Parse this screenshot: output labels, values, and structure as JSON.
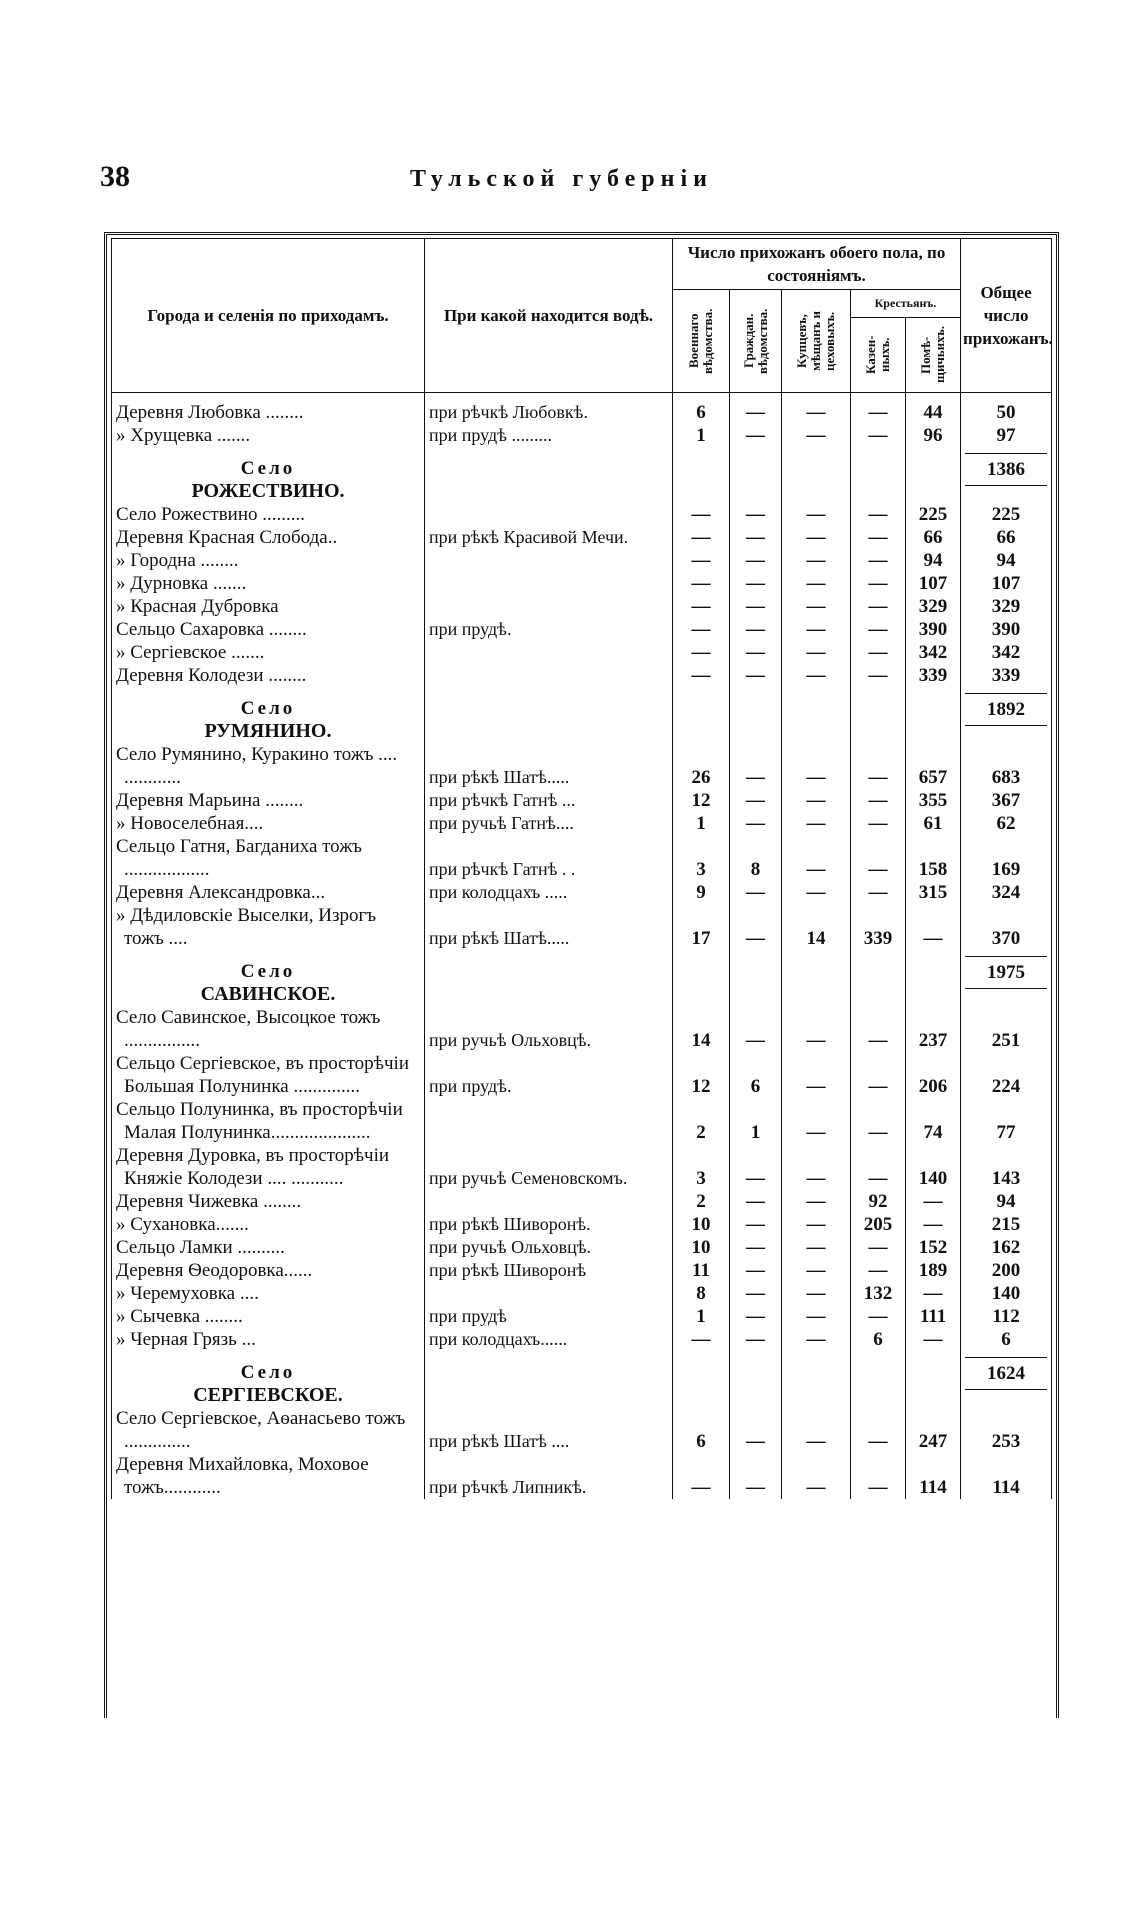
{
  "header": {
    "page_number": "38",
    "running_title": "Тульской губерніи"
  },
  "table": {
    "columns": {
      "name": "Города и селенія по приходамъ.",
      "water": "При какой находится водѣ.",
      "group": "Число прихожанъ обоего пола, по состояніямъ.",
      "military": "Военнаго вѣдомства.",
      "civil": "Граждан. вѣдомства.",
      "merchants": "Купцевъ, мѣщанъ и цеховыхъ.",
      "peasants": "Крестьянъ.",
      "state": "Казен-ныхъ.",
      "private": "Помѣ-щичьихъ.",
      "total": "Общее число прихожанъ."
    },
    "rows": [
      {
        "name": "Деревня Любовка ........",
        "water": "при рѣчкѣ Любовкѣ.",
        "cells": [
          "6",
          "—",
          "—",
          "—",
          "44",
          "50"
        ]
      },
      {
        "name": "» Хрущевка .......",
        "water": "при прудѣ .........",
        "cells": [
          "1",
          "—",
          "—",
          "—",
          "96",
          "97"
        ]
      },
      {
        "label": "Село",
        "title": "РОЖЕСТВИНО.",
        "total": "1386"
      },
      {
        "name": "Село Рожествино .........",
        "water": "",
        "cells": [
          "—",
          "—",
          "—",
          "—",
          "225",
          "225"
        ]
      },
      {
        "name": "Деревня Красная Слобода..",
        "water": "при рѣкѣ Красивой Мечи.",
        "cells": [
          "—",
          "—",
          "—",
          "—",
          "66",
          "66"
        ]
      },
      {
        "name": "» Городна ........",
        "water": "",
        "cells": [
          "—",
          "—",
          "—",
          "—",
          "94",
          "94"
        ]
      },
      {
        "name": "» Дурновка .......",
        "water": "",
        "cells": [
          "—",
          "—",
          "—",
          "—",
          "107",
          "107"
        ]
      },
      {
        "name": "» Красная Дубровка",
        "water": "",
        "cells": [
          "—",
          "—",
          "—",
          "—",
          "329",
          "329"
        ]
      },
      {
        "name": "Сельцо Сахаровка ........",
        "water": "при прудѣ.",
        "cells": [
          "—",
          "—",
          "—",
          "—",
          "390",
          "390"
        ]
      },
      {
        "name": "» Сергіевское .......",
        "water": "",
        "cells": [
          "—",
          "—",
          "—",
          "—",
          "342",
          "342"
        ]
      },
      {
        "name": "Деревня Колодези ........",
        "water": "",
        "cells": [
          "—",
          "—",
          "—",
          "—",
          "339",
          "339"
        ]
      },
      {
        "label": "Село",
        "title": "РУМЯНИНО.",
        "total": "1892"
      },
      {
        "name": "Село Румянино, Куракино тожъ .... ............",
        "water": "при рѣкѣ Шатѣ.....",
        "cells": [
          "26",
          "—",
          "—",
          "—",
          "657",
          "683"
        ]
      },
      {
        "name": "Деревня Марьина ........",
        "water": "при рѣчкѣ Гатнѣ ...",
        "cells": [
          "12",
          "—",
          "—",
          "—",
          "355",
          "367"
        ]
      },
      {
        "name": "» Новоселебная....",
        "water": "при ручьѣ Гатнѣ....",
        "cells": [
          "1",
          "—",
          "—",
          "—",
          "61",
          "62"
        ]
      },
      {
        "name": "Сельцо Гатня, Багданиха тожъ ..................",
        "water": "при рѣчкѣ Гатнѣ . .",
        "cells": [
          "3",
          "8",
          "—",
          "—",
          "158",
          "169"
        ]
      },
      {
        "name": "Деревня Александровка...",
        "water": "при колодцахъ .....",
        "cells": [
          "9",
          "—",
          "—",
          "—",
          "315",
          "324"
        ]
      },
      {
        "name": "» Дѣдиловскіе Выселки, Изрогъ тожъ ....",
        "water": "при рѣкѣ Шатѣ.....",
        "cells": [
          "17",
          "—",
          "14",
          "339",
          "—",
          "370"
        ]
      },
      {
        "label": "Село",
        "title": "САВИНСКОЕ.",
        "total": "1975"
      },
      {
        "name": "Село Савинское, Высоцкое тожъ ................",
        "water": "при ручьѣ Ольховцѣ.",
        "cells": [
          "14",
          "—",
          "—",
          "—",
          "237",
          "251"
        ]
      },
      {
        "name": "Сельцо Сергіевское, въ просторѣчіи Большая Полунинка ..............",
        "water": "при прудѣ.",
        "cells": [
          "12",
          "6",
          "—",
          "—",
          "206",
          "224"
        ]
      },
      {
        "name": "Сельцо Полунинка, въ просторѣчіи Малая Полунинка.....................",
        "water": "",
        "cells": [
          "2",
          "1",
          "—",
          "—",
          "74",
          "77"
        ]
      },
      {
        "name": "Деревня Дуровка, въ просторѣчіи Княжіе Колодези .... ...........",
        "water": "при ручьѣ Семеновскомъ.",
        "cells": [
          "3",
          "—",
          "—",
          "—",
          "140",
          "143"
        ]
      },
      {
        "name": "Деревня Чижевка ........",
        "water": "",
        "cells": [
          "2",
          "—",
          "—",
          "92",
          "—",
          "94"
        ]
      },
      {
        "name": "» Сухановка.......",
        "water": "при рѣкѣ Шиворонѣ.",
        "cells": [
          "10",
          "—",
          "—",
          "205",
          "—",
          "215"
        ]
      },
      {
        "name": "Сельцо Ламки ..........",
        "water": "при ручьѣ Ольховцѣ.",
        "cells": [
          "10",
          "—",
          "—",
          "—",
          "152",
          "162"
        ]
      },
      {
        "name": "Деревня Ѳеодоровка......",
        "water": "при рѣкѣ Шиворонѣ",
        "cells": [
          "11",
          "—",
          "—",
          "—",
          "189",
          "200"
        ]
      },
      {
        "name": "» Черемуховка ....",
        "water": "",
        "cells": [
          "8",
          "—",
          "—",
          "132",
          "—",
          "140"
        ]
      },
      {
        "name": "» Сычевка ........",
        "water": "при прудѣ",
        "cells": [
          "1",
          "—",
          "—",
          "—",
          "111",
          "112"
        ]
      },
      {
        "name": "» Черная Грязь ...",
        "water": "при колодцахъ......",
        "cells": [
          "—",
          "—",
          "—",
          "6",
          "—",
          "6"
        ]
      },
      {
        "label": "Село",
        "title": "СЕРГІЕВСКОЕ.",
        "total": "1624"
      },
      {
        "name": "Село Сергіевское, Аѳанасьево тожъ ..............",
        "water": "при рѣкѣ Шатѣ ....",
        "cells": [
          "6",
          "—",
          "—",
          "—",
          "247",
          "253"
        ]
      },
      {
        "name": "Деревня Михайловка, Моховое тожъ............",
        "water": "при рѣчкѣ Липникѣ.",
        "cells": [
          "—",
          "—",
          "—",
          "—",
          "114",
          "114"
        ]
      }
    ]
  }
}
